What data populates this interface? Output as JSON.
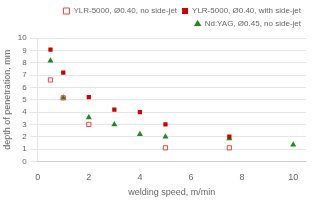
{
  "chart_data": {
    "type": "scatter",
    "xlabel": "welding speed, m/min",
    "ylabel": "depth of penetration, mm",
    "xlim": [
      0,
      10.5
    ],
    "ylim": [
      0,
      10
    ],
    "xticks": [
      0,
      2,
      4,
      6,
      8,
      10
    ],
    "yticks": [
      0,
      1,
      2,
      3,
      4,
      5,
      6,
      7,
      8,
      9,
      10
    ],
    "grid": "y",
    "legend": "upper right",
    "series": [
      {
        "name": "YLR-5000, Ø0.40, no side-jet",
        "color": "#ee4444",
        "marker": "square-open",
        "x": [
          0.5,
          1.0,
          2.0,
          5.0,
          7.5
        ],
        "values": [
          6.6,
          5.15,
          3.0,
          1.1,
          1.1
        ]
      },
      {
        "name": "YLR-5000, Ø0.40, with side-jet",
        "color": "#cc0000",
        "marker": "square",
        "x": [
          0.5,
          1.0,
          2.0,
          3.0,
          4.0,
          5.0,
          7.5
        ],
        "values": [
          9.05,
          7.2,
          5.2,
          4.2,
          4.0,
          3.0,
          2.0
        ]
      },
      {
        "name": "Nd:YAG, Ø0.45, no side-jet",
        "color": "#228822",
        "marker": "triangle",
        "x": [
          0.5,
          1.0,
          2.0,
          3.0,
          4.0,
          5.0,
          7.5,
          10.0
        ],
        "values": [
          8.15,
          5.15,
          3.55,
          3.0,
          2.2,
          2.0,
          1.85,
          1.35
        ]
      }
    ]
  }
}
